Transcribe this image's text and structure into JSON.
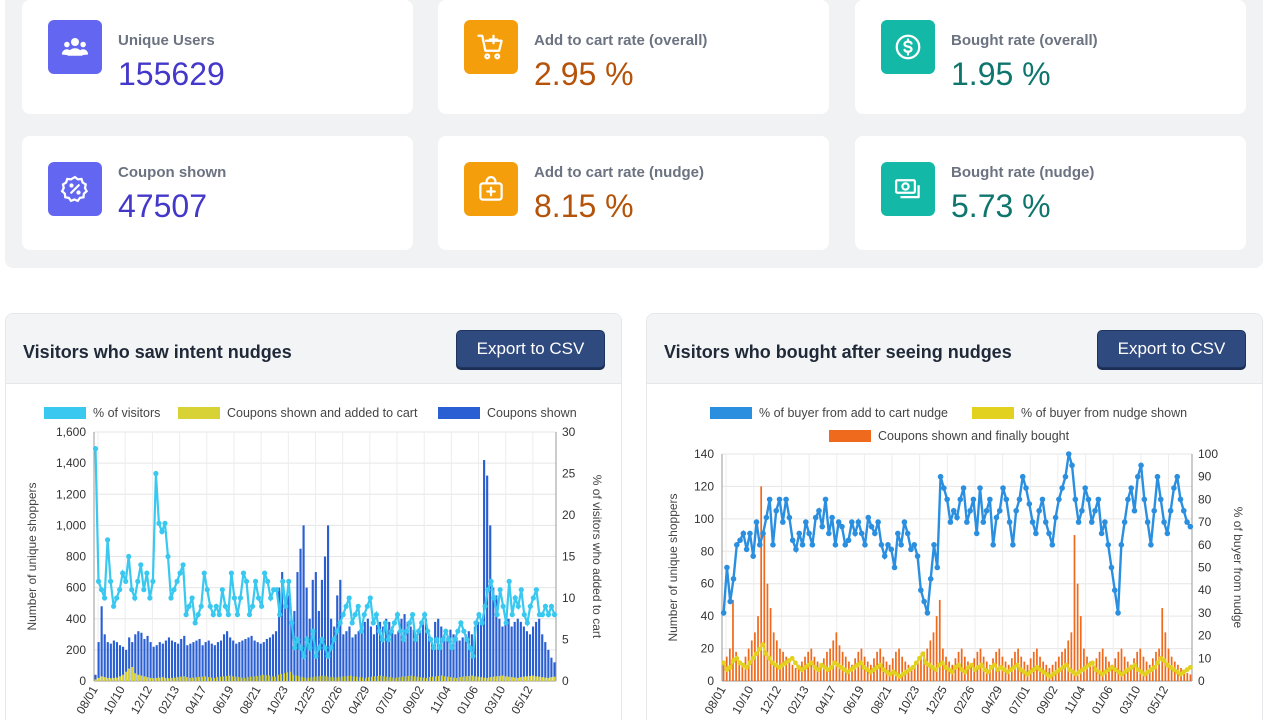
{
  "stats": [
    {
      "label": "Unique Users",
      "value": "155629",
      "icon": "users-icon",
      "color": "#6366f1"
    },
    {
      "label": "Add to cart rate (overall)",
      "value": "2.95 %",
      "icon": "cart-plus-icon",
      "color": "#f59e0b"
    },
    {
      "label": "Bought rate (overall)",
      "value": "1.95 %",
      "icon": "dollar-coin-icon",
      "color": "#14b8a6"
    },
    {
      "label": "Coupon shown",
      "value": "47507",
      "icon": "percent-badge-icon",
      "color": "#6366f1"
    },
    {
      "label": "Add to cart rate (nudge)",
      "value": "8.15 %",
      "icon": "shopping-bag-icon",
      "color": "#f59e0b"
    },
    {
      "label": "Bought rate (nudge)",
      "value": "5.73 %",
      "icon": "cash-icon",
      "color": "#14b8a6"
    }
  ],
  "chart_data": [
    {
      "type": "bar",
      "title": "Visitors who saw intent nudges",
      "export_label": "Export to CSV",
      "legend": [
        "% of visitors",
        "Coupons shown and added to cart",
        "Coupons shown"
      ],
      "colors": {
        "line": "#38c8f0",
        "bar_small": "#d8d236",
        "bar_main": "#2a5fd4"
      },
      "ylabel": "Number of unique shoppers",
      "y2label": "% of visitors who added to cart",
      "ylim": [
        0,
        1600
      ],
      "yticks": [
        "0",
        "200",
        "400",
        "600",
        "800",
        "1,000",
        "1,200",
        "1,400",
        "1,600"
      ],
      "y2lim": [
        0,
        30
      ],
      "y2ticks": [
        "0",
        "5",
        "10",
        "15",
        "20",
        "25",
        "30"
      ],
      "xticks": [
        "08/01",
        "10/10",
        "12/12",
        "02/13",
        "04/17",
        "06/19",
        "08/21",
        "10/23",
        "12/25",
        "02/26",
        "04/29",
        "07/01",
        "09/02",
        "11/04",
        "01/06",
        "03/10",
        "05/12"
      ],
      "series": [
        {
          "name": "Coupons shown",
          "values": [
            40,
            250,
            480,
            300,
            250,
            240,
            260,
            250,
            230,
            220,
            200,
            280,
            250,
            300,
            320,
            310,
            270,
            290,
            250,
            220,
            230,
            250,
            240,
            260,
            280,
            260,
            250,
            240,
            270,
            290,
            230,
            240,
            250,
            260,
            270,
            230,
            250,
            260,
            240,
            230,
            250,
            260,
            300,
            320,
            280,
            260,
            240,
            250,
            260,
            270,
            280,
            290,
            260,
            250,
            240,
            250,
            270,
            280,
            300,
            320,
            600,
            700,
            500,
            550,
            400,
            450,
            700,
            850,
            1000,
            600,
            400,
            650,
            700,
            450,
            650,
            800,
            1000,
            400,
            350,
            550,
            650,
            300,
            320,
            350,
            280,
            300,
            320,
            350,
            380,
            400,
            350,
            300,
            360,
            380,
            350,
            400,
            380,
            350,
            300,
            320,
            400,
            430,
            380,
            350,
            330,
            300,
            320,
            380,
            400,
            300,
            250,
            380,
            400,
            350,
            300,
            280,
            330,
            300,
            280,
            260,
            280,
            300,
            320,
            300,
            350,
            380,
            400,
            1420,
            1320,
            1000,
            600,
            550,
            400,
            350,
            380,
            400,
            350,
            380,
            400,
            380,
            350,
            320,
            300,
            350,
            380,
            400,
            300,
            250,
            200,
            150,
            120
          ]
        },
        {
          "name": "Coupons shown and added to cart",
          "values": [
            10,
            20,
            30,
            25,
            20,
            18,
            20,
            22,
            30,
            40,
            60,
            80,
            90,
            50,
            40,
            35,
            30,
            25,
            20,
            18,
            20,
            22,
            25,
            20,
            18,
            20,
            22,
            25,
            28,
            30,
            25,
            20,
            22,
            24,
            26,
            28,
            30,
            25,
            22,
            20,
            25,
            28,
            30,
            32,
            35,
            30,
            28,
            25,
            22,
            20,
            25,
            28,
            30,
            32,
            35,
            40,
            38,
            35,
            30,
            28,
            40,
            45,
            50,
            55,
            60,
            40,
            35,
            30,
            25,
            22,
            20,
            25,
            28,
            30,
            32,
            35,
            30,
            28,
            25,
            22,
            25,
            28,
            30,
            32,
            35,
            30,
            28,
            25,
            22,
            20,
            25,
            28,
            30,
            32,
            35,
            30,
            28,
            25,
            22,
            20,
            25,
            28,
            30,
            32,
            35,
            30,
            28,
            25,
            22,
            20,
            25,
            28,
            30,
            32,
            35,
            30,
            28,
            25,
            22,
            20,
            25,
            28,
            30,
            32,
            35,
            30,
            28,
            25,
            22,
            20,
            25,
            28,
            30,
            32,
            35,
            30,
            28,
            25,
            22,
            20,
            25,
            28,
            30,
            32,
            35,
            30,
            28,
            25,
            22,
            20,
            25,
            28
          ]
        },
        {
          "name": "% of visitors",
          "values": [
            28,
            12,
            11,
            10,
            17,
            12,
            9,
            10,
            11,
            13,
            12,
            15,
            11,
            10,
            12,
            14,
            11,
            13,
            10,
            12,
            25,
            19,
            18,
            19,
            15,
            10,
            11,
            12,
            13,
            14,
            8,
            9,
            10,
            7,
            8,
            9,
            13,
            11,
            9,
            8,
            9,
            8,
            11,
            9,
            8,
            13,
            10,
            8,
            10,
            13,
            12,
            8,
            9,
            12,
            10,
            9,
            13,
            12,
            10,
            11,
            11,
            8,
            12,
            9,
            12,
            7,
            4,
            5,
            4,
            3,
            5,
            4,
            6,
            3,
            4,
            5,
            4,
            3,
            4,
            5,
            6,
            7,
            8,
            9,
            10,
            7,
            8,
            9,
            6,
            8,
            9,
            10,
            7,
            8,
            6,
            5,
            7,
            5,
            6,
            7,
            8,
            6,
            5,
            6,
            7,
            8,
            5,
            6,
            7,
            8,
            6,
            5,
            4,
            5,
            4,
            5,
            6,
            5,
            4,
            5,
            6,
            7,
            6,
            5,
            4,
            3,
            7,
            8,
            7,
            9,
            11,
            12,
            10,
            8,
            11,
            9,
            7,
            12,
            8,
            10,
            9,
            11,
            8,
            7,
            9,
            10,
            11,
            8,
            8,
            9,
            8,
            9,
            8
          ]
        }
      ]
    },
    {
      "type": "bar",
      "title": "Visitors who bought after seeing nudges",
      "export_label": "Export to CSV",
      "legend": [
        "% of buyer from add to cart nudge",
        "% of buyer from nudge shown",
        "Coupons shown and finally bought"
      ],
      "colors": {
        "line_main": "#2b8fe0",
        "line_small": "#e2d21f",
        "bar": "#f06a1d"
      },
      "ylabel": "Number of unique shoppers",
      "y2label": "% of buyer from nudge",
      "ylim": [
        0,
        140
      ],
      "yticks": [
        "0",
        "20",
        "40",
        "60",
        "80",
        "100",
        "120",
        "140"
      ],
      "y2lim": [
        0,
        100
      ],
      "y2ticks": [
        "0",
        "10",
        "20",
        "30",
        "40",
        "50",
        "60",
        "70",
        "80",
        "90",
        "100"
      ],
      "xticks": [
        "08/01",
        "10/10",
        "12/12",
        "02/13",
        "04/17",
        "06/19",
        "08/21",
        "10/23",
        "12/25",
        "02/26",
        "04/29",
        "07/01",
        "09/02",
        "11/04",
        "01/06",
        "03/10",
        "05/12"
      ],
      "series": [
        {
          "name": "% of buyer from add to cart nudge",
          "values": [
            30,
            50,
            35,
            45,
            60,
            62,
            65,
            58,
            65,
            55,
            70,
            60,
            65,
            72,
            80,
            60,
            75,
            80,
            70,
            80,
            72,
            62,
            58,
            65,
            60,
            70,
            65,
            60,
            72,
            75,
            68,
            80,
            65,
            72,
            60,
            70,
            68,
            60,
            62,
            70,
            65,
            70,
            65,
            60,
            72,
            68,
            65,
            70,
            60,
            55,
            60,
            58,
            50,
            65,
            60,
            70,
            65,
            58,
            60,
            55,
            40,
            35,
            30,
            45,
            60,
            50,
            90,
            85,
            80,
            70,
            75,
            72,
            80,
            85,
            70,
            75,
            80,
            65,
            85,
            70,
            75,
            80,
            60,
            72,
            75,
            85,
            80,
            70,
            60,
            75,
            80,
            90,
            85,
            78,
            70,
            65,
            75,
            80,
            70,
            65,
            60,
            72,
            80,
            85,
            90,
            100,
            95,
            80,
            70,
            75,
            85,
            80,
            70,
            75,
            80,
            65,
            70,
            60,
            50,
            40,
            30,
            60,
            70,
            80,
            85,
            75,
            90,
            95,
            80,
            70,
            60,
            75,
            90,
            80,
            70,
            65,
            75,
            85,
            90,
            80,
            75,
            70,
            68
          ]
        },
        {
          "name": "% of buyer from nudge shown",
          "values": [
            8,
            5,
            6,
            9,
            10,
            8,
            7,
            6,
            8,
            10,
            12,
            14,
            16,
            12,
            10,
            8,
            7,
            6,
            7,
            8,
            9,
            10,
            8,
            6,
            5,
            6,
            7,
            8,
            6,
            5,
            7,
            6,
            5,
            6,
            8,
            7,
            6,
            5,
            4,
            5,
            6,
            7,
            8,
            6,
            5,
            4,
            5,
            6,
            7,
            5,
            4,
            3,
            4,
            3,
            2,
            3,
            4,
            5,
            6,
            8,
            10,
            12,
            8,
            7,
            6,
            5,
            7,
            8,
            6,
            5,
            4,
            6,
            7,
            5,
            4,
            6,
            7,
            5,
            6,
            7,
            5,
            4,
            6,
            7,
            5,
            6,
            5,
            4,
            5,
            6,
            7,
            5,
            4,
            3,
            4,
            5,
            6,
            5,
            4,
            3,
            2,
            3,
            4,
            5,
            6,
            7,
            5,
            4,
            3,
            4,
            5,
            6,
            7,
            8,
            5,
            4,
            3,
            4,
            5,
            6,
            5,
            4,
            3,
            4,
            5,
            6,
            7,
            5,
            4,
            3,
            4,
            5,
            6,
            8,
            10,
            9,
            7,
            6,
            5,
            4,
            3,
            4,
            5,
            6
          ]
        },
        {
          "name": "Coupons shown and finally bought",
          "values": [
            10,
            15,
            20,
            50,
            18,
            12,
            10,
            15,
            20,
            25,
            30,
            40,
            120,
            90,
            60,
            45,
            30,
            25,
            20,
            18,
            15,
            12,
            10,
            8,
            10,
            12,
            15,
            18,
            20,
            15,
            12,
            10,
            14,
            18,
            20,
            25,
            30,
            22,
            18,
            15,
            12,
            10,
            14,
            18,
            20,
            15,
            12,
            10,
            14,
            18,
            20,
            15,
            12,
            10,
            14,
            18,
            20,
            15,
            12,
            10,
            8,
            10,
            12,
            15,
            18,
            20,
            25,
            30,
            40,
            50,
            20,
            15,
            12,
            10,
            14,
            18,
            20,
            15,
            12,
            10,
            14,
            18,
            20,
            15,
            12,
            10,
            14,
            18,
            20,
            15,
            12,
            10,
            14,
            18,
            20,
            15,
            12,
            10,
            14,
            18,
            20,
            15,
            12,
            10,
            8,
            10,
            12,
            15,
            18,
            20,
            25,
            30,
            90,
            60,
            40,
            20,
            15,
            12,
            10,
            14,
            18,
            20,
            15,
            12,
            10,
            14,
            18,
            20,
            15,
            12,
            10,
            14,
            18,
            20,
            15,
            12,
            10,
            14,
            18,
            20,
            45,
            30,
            20,
            15,
            12,
            10,
            8,
            6,
            5,
            4
          ]
        }
      ]
    }
  ]
}
